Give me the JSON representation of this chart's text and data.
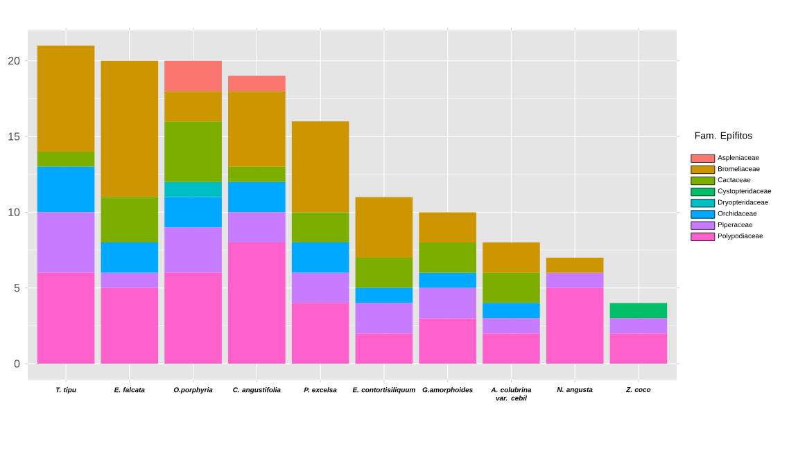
{
  "chart_data": {
    "type": "bar",
    "stacked": true,
    "legend_title": "Fam. Epífitos",
    "categories": [
      "T. tipu",
      "E. falcata",
      "O.porphyria",
      "C. angustifolia",
      "P. excelsa",
      "E. contortisiliquum",
      "G.amorphoides",
      "A. colubrina var. cebil",
      "N. angusta",
      "Z. coco"
    ],
    "series": [
      {
        "name": "Polypodiaceae",
        "color": "#ff61cc",
        "values": [
          6,
          5,
          6,
          8,
          4,
          2,
          3,
          2,
          5,
          2
        ]
      },
      {
        "name": "Piperaceae",
        "color": "#c77cff",
        "values": [
          4,
          1,
          3,
          2,
          2,
          2,
          2,
          1,
          1,
          1
        ]
      },
      {
        "name": "Orchidaceae",
        "color": "#00a9ff",
        "values": [
          3,
          2,
          2,
          2,
          2,
          1,
          1,
          1,
          0,
          0
        ]
      },
      {
        "name": "Dryopteridaceae",
        "color": "#00bfc4",
        "values": [
          0,
          0,
          1,
          0,
          0,
          0,
          0,
          0,
          0,
          0
        ]
      },
      {
        "name": "Cystopteridaceae",
        "color": "#00be67",
        "values": [
          0,
          0,
          0,
          0,
          0,
          0,
          0,
          0,
          0,
          1
        ]
      },
      {
        "name": "Cactaceae",
        "color": "#7cae00",
        "values": [
          1,
          3,
          4,
          1,
          2,
          2,
          2,
          2,
          0,
          0
        ]
      },
      {
        "name": "Bromeliaceae",
        "color": "#cd9600",
        "values": [
          7,
          9,
          2,
          5,
          6,
          4,
          2,
          2,
          1,
          0
        ]
      },
      {
        "name": "Aspleniaceae",
        "color": "#f8766d",
        "values": [
          0,
          0,
          2,
          1,
          0,
          0,
          0,
          0,
          0,
          0
        ]
      }
    ],
    "ylim": [
      -1.05,
      22
    ],
    "yticks": [
      0,
      5,
      10,
      15,
      20
    ],
    "grid": true,
    "legend": "right"
  }
}
